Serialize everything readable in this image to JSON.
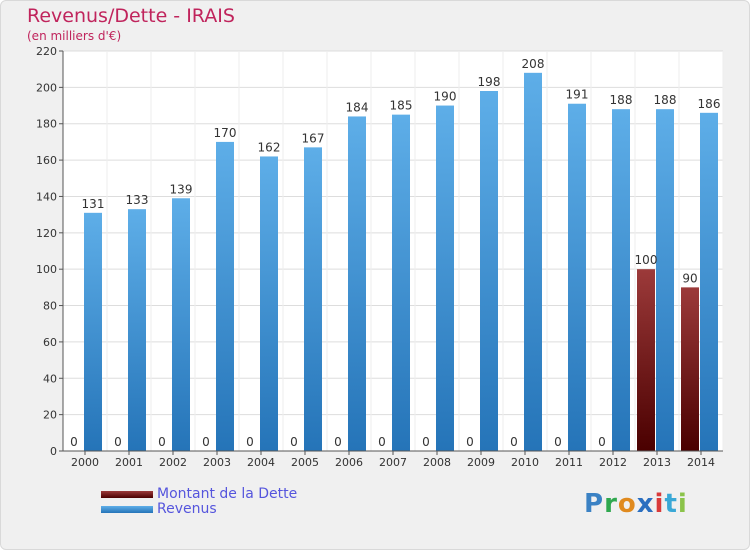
{
  "header": {
    "title": "Revenus/Dette - IRAIS",
    "subtitle": "(en milliers d'€)"
  },
  "chart_data": {
    "type": "bar",
    "categories": [
      "2000",
      "2001",
      "2002",
      "2003",
      "2004",
      "2005",
      "2006",
      "2007",
      "2008",
      "2009",
      "2010",
      "2011",
      "2012",
      "2013",
      "2014"
    ],
    "series": [
      {
        "name": "Montant de la Dette",
        "color": "#7a1212",
        "values": [
          0,
          0,
          0,
          0,
          0,
          0,
          0,
          0,
          0,
          0,
          0,
          0,
          0,
          100,
          90
        ]
      },
      {
        "name": "Revenus",
        "color": "#3a8fd6",
        "values": [
          131,
          133,
          139,
          170,
          162,
          167,
          184,
          185,
          190,
          198,
          208,
          191,
          188,
          188,
          186
        ]
      }
    ],
    "ylim": [
      0,
      220
    ],
    "yticks": [
      0,
      20,
      40,
      60,
      80,
      100,
      120,
      140,
      160,
      180,
      200,
      220
    ],
    "grid": true,
    "legend_position": "bottom-left"
  },
  "logo": {
    "letters": [
      {
        "char": "P",
        "color": "#3b82c4"
      },
      {
        "char": "r",
        "color": "#2fa84f"
      },
      {
        "char": "o",
        "color": "#e08a1e"
      },
      {
        "char": "x",
        "color": "#2b6fc0"
      },
      {
        "char": "i",
        "color": "#d93a3a"
      },
      {
        "char": "t",
        "color": "#3aa8d6"
      },
      {
        "char": "i",
        "color": "#8bc34a"
      }
    ]
  }
}
